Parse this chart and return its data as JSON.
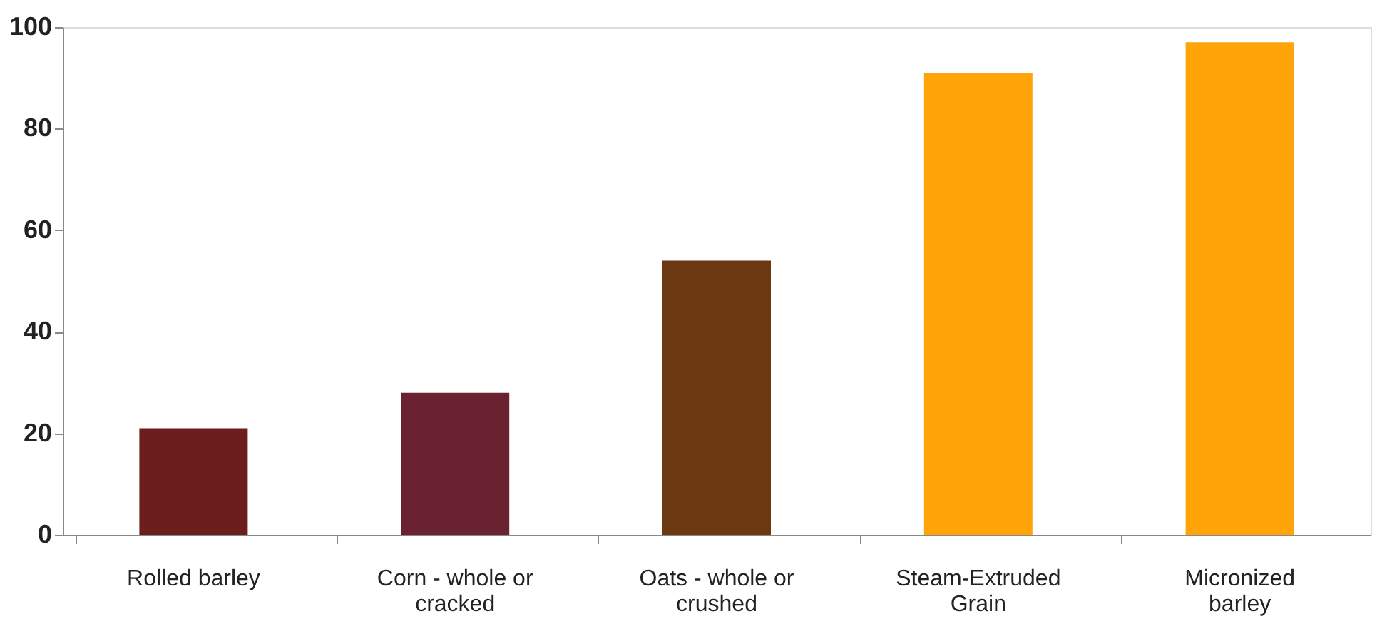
{
  "chart_data": {
    "type": "bar",
    "categories": [
      "Rolled barley",
      "Corn - whole or cracked",
      "Oats - whole or crushed",
      "Steam-Extruded Grain",
      "Micronized barley"
    ],
    "values": [
      21,
      28,
      54,
      91,
      97
    ],
    "colors": [
      "#6b1e1c",
      "#6a2231",
      "#6b3812",
      "#ffa50a",
      "#ffa50a"
    ],
    "ylim": [
      0,
      100
    ],
    "yticks": [
      0,
      20,
      40,
      60,
      80,
      100
    ],
    "grid": false,
    "legend": false
  }
}
